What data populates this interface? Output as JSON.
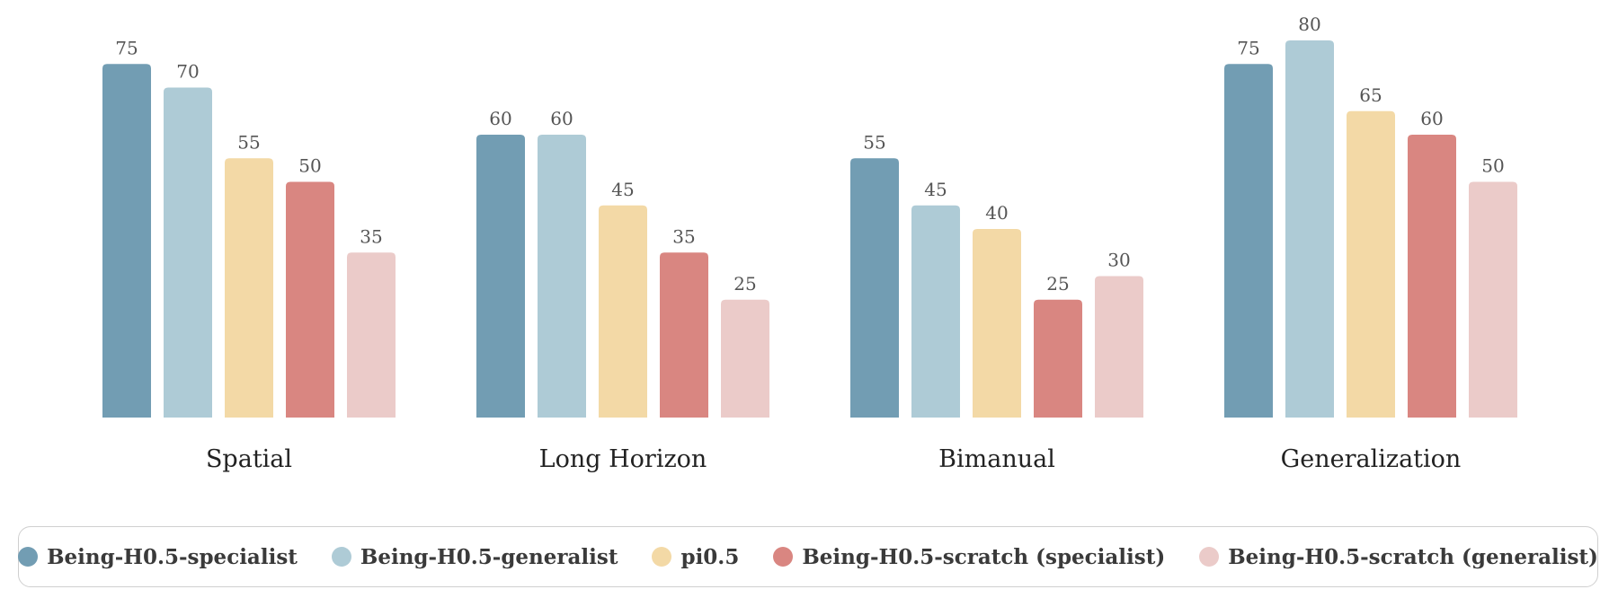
{
  "chart_data": {
    "type": "bar",
    "title": "",
    "xlabel": "",
    "ylabel": "",
    "ylim": [
      0,
      85
    ],
    "grid": false,
    "legend_position": "bottom",
    "categories": [
      "Spatial",
      "Long Horizon",
      "Bimanual",
      "Generalization"
    ],
    "series": [
      {
        "name": "Being-H0.5-specialist",
        "color": "#729DB3",
        "values": [
          75,
          60,
          55,
          75
        ]
      },
      {
        "name": "Being-H0.5-generalist",
        "color": "#AECBD6",
        "values": [
          70,
          60,
          45,
          80
        ]
      },
      {
        "name": "pi0.5",
        "color": "#F3D9A6",
        "values": [
          55,
          45,
          40,
          65
        ]
      },
      {
        "name": "Being-H0.5-scratch (specialist)",
        "color": "#D98681",
        "values": [
          50,
          35,
          25,
          60
        ]
      },
      {
        "name": "Being-H0.5-scratch (generalist)",
        "color": "#EBCBC9",
        "values": [
          35,
          25,
          30,
          50
        ]
      }
    ]
  }
}
